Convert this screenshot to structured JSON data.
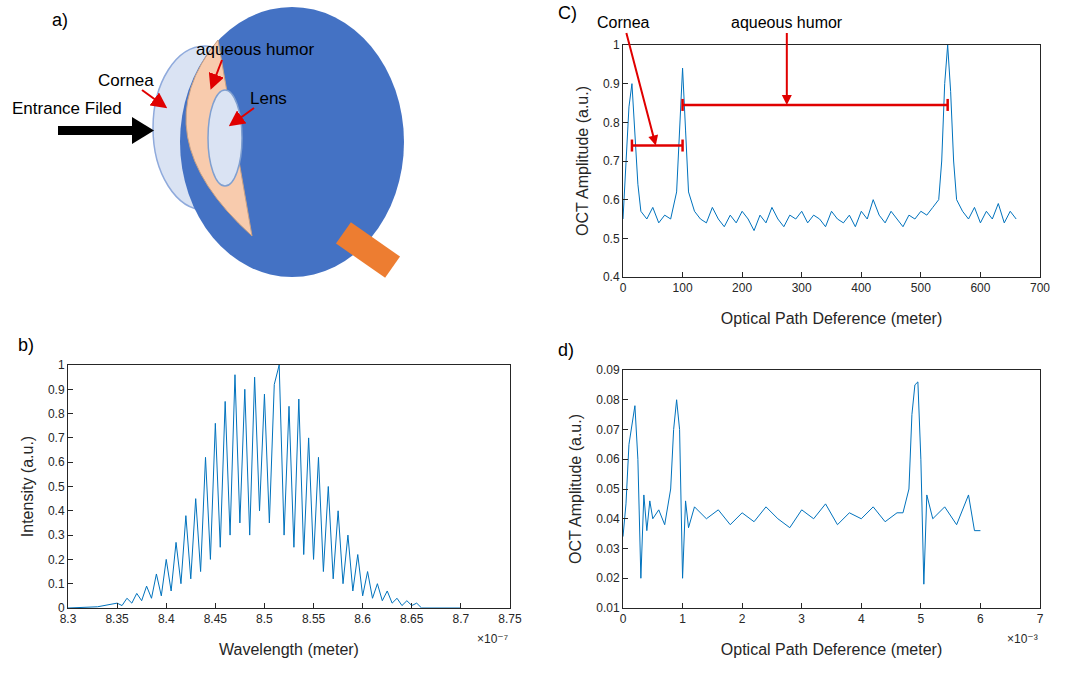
{
  "diagram": {
    "panel": "a)",
    "labels": {
      "entrance": "Entrance Filed",
      "cornea": "Cornea",
      "aqueous": "aqueous humor",
      "lens": "Lens"
    }
  },
  "chart_data": [
    {
      "panel": "b)",
      "type": "line",
      "x_label": "Wavelength (meter)",
      "y_label": "Intensity (a.u.)",
      "color": "#0072BD",
      "grid": false,
      "x": [
        8.3e-07,
        8.33e-07,
        8.35e-07,
        8.355e-07,
        8.36e-07,
        8.365e-07,
        8.37e-07,
        8.375e-07,
        8.38e-07,
        8.385e-07,
        8.39e-07,
        8.395e-07,
        8.4e-07,
        8.405e-07,
        8.41e-07,
        8.415e-07,
        8.42e-07,
        8.425e-07,
        8.43e-07,
        8.435e-07,
        8.44e-07,
        8.445e-07,
        8.45e-07,
        8.455e-07,
        8.46e-07,
        8.465e-07,
        8.47e-07,
        8.475e-07,
        8.48e-07,
        8.485e-07,
        8.49e-07,
        8.495e-07,
        8.5e-07,
        8.505e-07,
        8.51e-07,
        8.515e-07,
        8.52e-07,
        8.525e-07,
        8.53e-07,
        8.535e-07,
        8.54e-07,
        8.545e-07,
        8.55e-07,
        8.555e-07,
        8.56e-07,
        8.565e-07,
        8.57e-07,
        8.575e-07,
        8.58e-07,
        8.585e-07,
        8.59e-07,
        8.595e-07,
        8.6e-07,
        8.605e-07,
        8.61e-07,
        8.615e-07,
        8.62e-07,
        8.625e-07,
        8.63e-07,
        8.635e-07,
        8.64e-07,
        8.645e-07,
        8.65e-07,
        8.655e-07,
        8.66e-07,
        8.68e-07,
        8.7e-07
      ],
      "values": [
        0,
        0.005,
        0.02,
        0.01,
        0.04,
        0.02,
        0.06,
        0.03,
        0.09,
        0.04,
        0.14,
        0.05,
        0.2,
        0.07,
        0.27,
        0.1,
        0.38,
        0.12,
        0.45,
        0.15,
        0.62,
        0.2,
        0.76,
        0.25,
        0.85,
        0.3,
        0.96,
        0.35,
        0.9,
        0.3,
        0.95,
        0.4,
        0.88,
        0.35,
        0.92,
        1.0,
        0.3,
        0.83,
        0.25,
        0.86,
        0.22,
        0.7,
        0.2,
        0.62,
        0.15,
        0.5,
        0.12,
        0.4,
        0.1,
        0.3,
        0.07,
        0.22,
        0.05,
        0.15,
        0.04,
        0.1,
        0.03,
        0.07,
        0.02,
        0.04,
        0.01,
        0.03,
        0.01,
        0.02,
        0.0,
        0,
        0
      ],
      "xlim": [
        8.3e-07,
        8.75e-07
      ],
      "xticks": [
        {
          "value": 8.3e-07,
          "label": "8.3"
        },
        {
          "value": 8.35e-07,
          "label": "8.35"
        },
        {
          "value": 8.4e-07,
          "label": "8.4"
        },
        {
          "value": 8.45e-07,
          "label": "8.45"
        },
        {
          "value": 8.5e-07,
          "label": "8.5"
        },
        {
          "value": 8.55e-07,
          "label": "8.55"
        },
        {
          "value": 8.6e-07,
          "label": "8.6"
        },
        {
          "value": 8.65e-07,
          "label": "8.65"
        },
        {
          "value": 8.7e-07,
          "label": "8.7"
        },
        {
          "value": 8.75e-07,
          "label": "8.75"
        }
      ],
      "ylim": [
        0,
        1
      ],
      "yticks": [
        0,
        0.1,
        0.2,
        0.3,
        0.4,
        0.5,
        0.6,
        0.7,
        0.8,
        0.9,
        1
      ],
      "annotations": [
        {
          "text": "×10⁻⁷"
        }
      ]
    },
    {
      "panel": "C)",
      "type": "line",
      "x_label": "Optical Path Deference (meter)",
      "y_label": "OCT Amplitude (a.u.)",
      "color": "#0072BD",
      "grid": false,
      "x": [
        0,
        5,
        10,
        15,
        20,
        25,
        30,
        40,
        50,
        60,
        70,
        80,
        90,
        95,
        100,
        105,
        110,
        120,
        130,
        140,
        150,
        160,
        170,
        180,
        190,
        200,
        210,
        220,
        230,
        240,
        250,
        260,
        270,
        280,
        290,
        300,
        310,
        320,
        330,
        340,
        350,
        360,
        370,
        380,
        390,
        400,
        410,
        420,
        430,
        440,
        450,
        460,
        470,
        480,
        490,
        500,
        510,
        520,
        530,
        535,
        540,
        545,
        550,
        555,
        560,
        570,
        580,
        590,
        600,
        610,
        620,
        630,
        640,
        650,
        660
      ],
      "values": [
        0.55,
        0.68,
        0.84,
        0.9,
        0.78,
        0.64,
        0.57,
        0.55,
        0.58,
        0.54,
        0.56,
        0.55,
        0.62,
        0.8,
        0.94,
        0.78,
        0.62,
        0.57,
        0.55,
        0.54,
        0.58,
        0.55,
        0.53,
        0.56,
        0.54,
        0.57,
        0.55,
        0.52,
        0.56,
        0.54,
        0.58,
        0.55,
        0.53,
        0.56,
        0.55,
        0.57,
        0.54,
        0.56,
        0.55,
        0.53,
        0.57,
        0.55,
        0.54,
        0.56,
        0.53,
        0.57,
        0.55,
        0.6,
        0.56,
        0.54,
        0.57,
        0.55,
        0.53,
        0.56,
        0.55,
        0.57,
        0.56,
        0.58,
        0.6,
        0.7,
        0.9,
        1.0,
        0.88,
        0.7,
        0.6,
        0.57,
        0.55,
        0.58,
        0.54,
        0.57,
        0.55,
        0.59,
        0.54,
        0.57,
        0.55
      ],
      "xlim": [
        0,
        700
      ],
      "xticks": [
        0,
        100,
        200,
        300,
        400,
        500,
        600,
        700
      ],
      "ylim": [
        0.4,
        1
      ],
      "yticks": [
        0.4,
        0.5,
        0.6,
        0.7,
        0.8,
        0.9,
        1
      ],
      "annotations": [
        {
          "text": "Cornea",
          "x": 55,
          "y": 0.74,
          "span": [
            15,
            100
          ]
        },
        {
          "text": "aqueous humor",
          "x": 275,
          "y": 0.845,
          "span": [
            100,
            545
          ]
        }
      ]
    },
    {
      "panel": "d)",
      "type": "line",
      "x_label": "Optical Path Deference (meter)",
      "y_label": "OCT Amplitude (a.u.)",
      "color": "#0072BD",
      "grid": false,
      "x": [
        0,
        5e-05,
        0.0001,
        0.00015,
        0.0002,
        0.00025,
        0.0003,
        0.00035,
        0.0004,
        0.00045,
        0.0005,
        0.0006,
        0.0007,
        0.0008,
        0.00085,
        0.0009,
        0.00095,
        0.001,
        0.00105,
        0.0011,
        0.0012,
        0.0014,
        0.0016,
        0.0018,
        0.002,
        0.0022,
        0.0024,
        0.0026,
        0.0028,
        0.003,
        0.0032,
        0.0034,
        0.0036,
        0.0038,
        0.004,
        0.0042,
        0.0044,
        0.0046,
        0.0047,
        0.0048,
        0.00485,
        0.0049,
        0.00495,
        0.005,
        0.00505,
        0.0051,
        0.0052,
        0.0054,
        0.0056,
        0.0058,
        0.0059,
        0.006
      ],
      "values": [
        0.034,
        0.045,
        0.065,
        0.072,
        0.078,
        0.06,
        0.02,
        0.048,
        0.036,
        0.046,
        0.04,
        0.043,
        0.038,
        0.05,
        0.07,
        0.08,
        0.07,
        0.02,
        0.046,
        0.037,
        0.044,
        0.04,
        0.043,
        0.038,
        0.042,
        0.039,
        0.044,
        0.04,
        0.037,
        0.043,
        0.04,
        0.045,
        0.038,
        0.042,
        0.04,
        0.044,
        0.039,
        0.042,
        0.042,
        0.05,
        0.075,
        0.085,
        0.086,
        0.06,
        0.018,
        0.048,
        0.04,
        0.044,
        0.038,
        0.048,
        0.036,
        0.036
      ],
      "xlim": [
        0,
        0.007
      ],
      "xticks": [
        0,
        {
          "value": 0.001,
          "label": "1"
        },
        {
          "value": 0.002,
          "label": "2"
        },
        {
          "value": 0.003,
          "label": "3"
        },
        {
          "value": 0.004,
          "label": "4"
        },
        {
          "value": 0.005,
          "label": "5"
        },
        {
          "value": 0.006,
          "label": "6"
        },
        {
          "value": 0.007,
          "label": "7"
        }
      ],
      "ylim": [
        0.01,
        0.09
      ],
      "yticks": [
        0.01,
        0.02,
        0.03,
        0.04,
        0.05,
        0.06,
        0.07,
        0.08,
        0.09
      ],
      "annotations": [
        {
          "text": "×10⁻³"
        }
      ]
    }
  ]
}
